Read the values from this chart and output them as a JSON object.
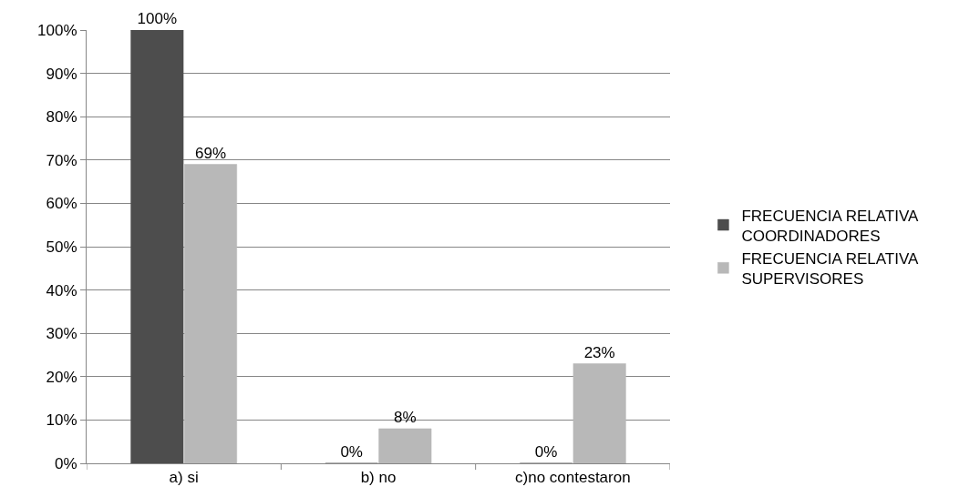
{
  "chart_data": {
    "type": "bar",
    "categories": [
      "a) si",
      "b) no",
      "c)no contestaron"
    ],
    "series": [
      {
        "name": "FRECUENCIA RELATIVA COORDINADORES",
        "color": "#4d4d4d",
        "values": [
          100,
          0,
          0
        ],
        "value_labels": [
          "100%",
          "0%",
          "0%"
        ]
      },
      {
        "name": "FRECUENCIA RELATIVA SUPERVISORES",
        "color": "#b8b8b8",
        "values": [
          69,
          8,
          23
        ],
        "value_labels": [
          "69%",
          "8%",
          "23%"
        ]
      }
    ],
    "ylim": [
      0,
      100
    ],
    "yticks": [
      {
        "value": 0,
        "label": "0%"
      },
      {
        "value": 10,
        "label": "10%"
      },
      {
        "value": 20,
        "label": "20%"
      },
      {
        "value": 30,
        "label": "30%"
      },
      {
        "value": 40,
        "label": "40%"
      },
      {
        "value": 50,
        "label": "50%"
      },
      {
        "value": 60,
        "label": "60%"
      },
      {
        "value": 70,
        "label": "70%"
      },
      {
        "value": 80,
        "label": "80%"
      },
      {
        "value": 90,
        "label": "90%"
      },
      {
        "value": 100,
        "label": "100%"
      }
    ],
    "grid": "y",
    "legend": "right"
  }
}
